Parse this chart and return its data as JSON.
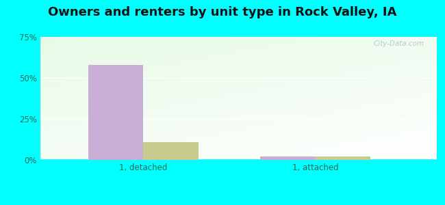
{
  "title": "Owners and renters by unit type in Rock Valley, IA",
  "categories": [
    "1, detached",
    "1, attached"
  ],
  "owner_values": [
    58,
    2
  ],
  "renter_values": [
    11,
    2
  ],
  "owner_color": "#c9aed6",
  "renter_color": "#c8cb8e",
  "ylim": [
    0,
    75
  ],
  "yticks": [
    0,
    25,
    50,
    75
  ],
  "yticklabels": [
    "0%",
    "25%",
    "50%",
    "75%"
  ],
  "outer_bg": "#00ffff",
  "watermark": "City-Data.com",
  "title_fontsize": 13,
  "bar_width": 0.32,
  "tick_color": "#336655"
}
